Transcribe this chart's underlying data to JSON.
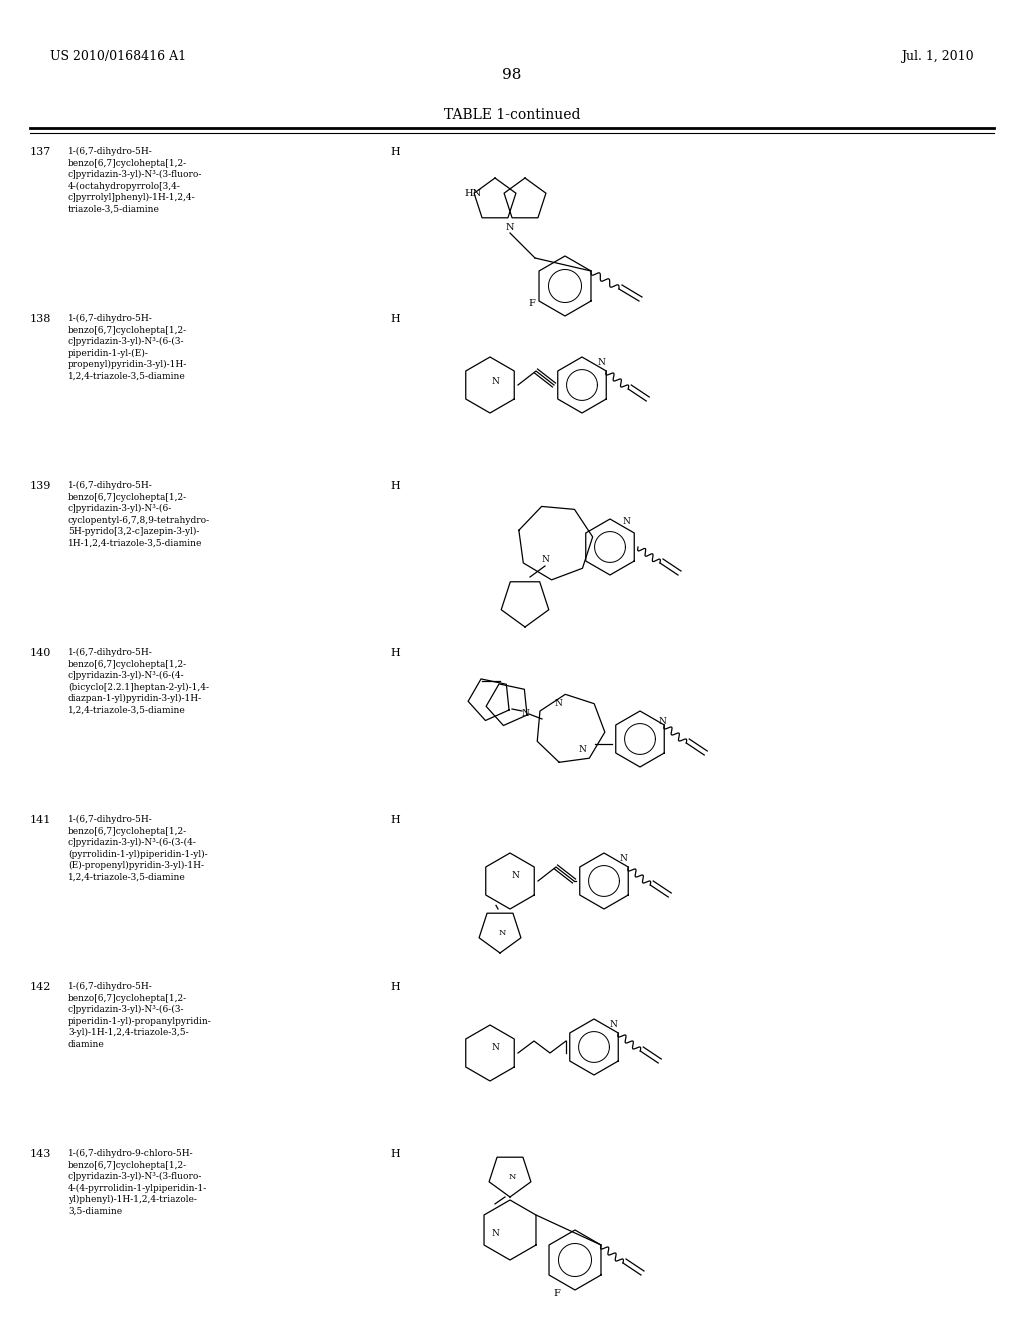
{
  "title": "TABLE 1-continued",
  "page_number": "98",
  "patent_left": "US 2010/0168416 A1",
  "patent_right": "Jul. 1, 2010",
  "background_color": "#ffffff",
  "rows": [
    {
      "number": "137",
      "name": "1-(6,7-dihydro-5H-\nbenzo[6,7]cyclohepta[1,2-\nc]pyridazin-3-yl)-N³-(3-fluoro-\n4-(octahydropyrrolo[3,4-\nc]pyrrolyl]phenyl)-1H-1,2,4-\ntriazole-3,5-diamine"
    },
    {
      "number": "138",
      "name": "1-(6,7-dihydro-5H-\nbenzo[6,7]cyclohepta[1,2-\nc]pyridazin-3-yl)-N³-(6-(3-\npiperidin-1-yl-(E)-\npropenyl)pyridin-3-yl)-1H-\n1,2,4-triazole-3,5-diamine"
    },
    {
      "number": "139",
      "name": "1-(6,7-dihydro-5H-\nbenzo[6,7]cyclohepta[1,2-\nc]pyridazin-3-yl)-N³-(6-\ncyclopentyl-6,7,8,9-tetrahydro-\n5H-pyrido[3,2-c]azepin-3-yl)-\n1H-1,2,4-triazole-3,5-diamine"
    },
    {
      "number": "140",
      "name": "1-(6,7-dihydro-5H-\nbenzo[6,7]cyclohepta[1,2-\nc]pyridazin-3-yl)-N³-(6-(4-\n(bicyclo[2.2.1]heptan-2-yl)-1,4-\ndiazpan-1-yl)pyridin-3-yl)-1H-\n1,2,4-triazole-3,5-diamine"
    },
    {
      "number": "141",
      "name": "1-(6,7-dihydro-5H-\nbenzo[6,7]cyclohepta[1,2-\nc]pyridazin-3-yl)-N³-(6-(3-(4-\n(pyrrolidin-1-yl)piperidin-1-yl)-\n(E)-propenyl)pyridin-3-yl)-1H-\n1,2,4-triazole-3,5-diamine"
    },
    {
      "number": "142",
      "name": "1-(6,7-dihydro-5H-\nbenzo[6,7]cyclohepta[1,2-\nc]pyridazin-3-yl)-N³-(6-(3-\npiperidin-1-yl)-propanylpyridin-\n3-yl)-1H-1,2,4-triazole-3,5-\ndiamine"
    },
    {
      "number": "143",
      "name": "1-(6,7-dihydro-9-chloro-5H-\nbenzo[6,7]cyclohepta[1,2-\nc]pyridazin-3-yl)-N³-(3-fluoro-\n4-(4-pyrrolidin-1-ylpiperidin-1-\nyl)phenyl)-1H-1,2,4-triazole-\n3,5-diamine"
    }
  ]
}
